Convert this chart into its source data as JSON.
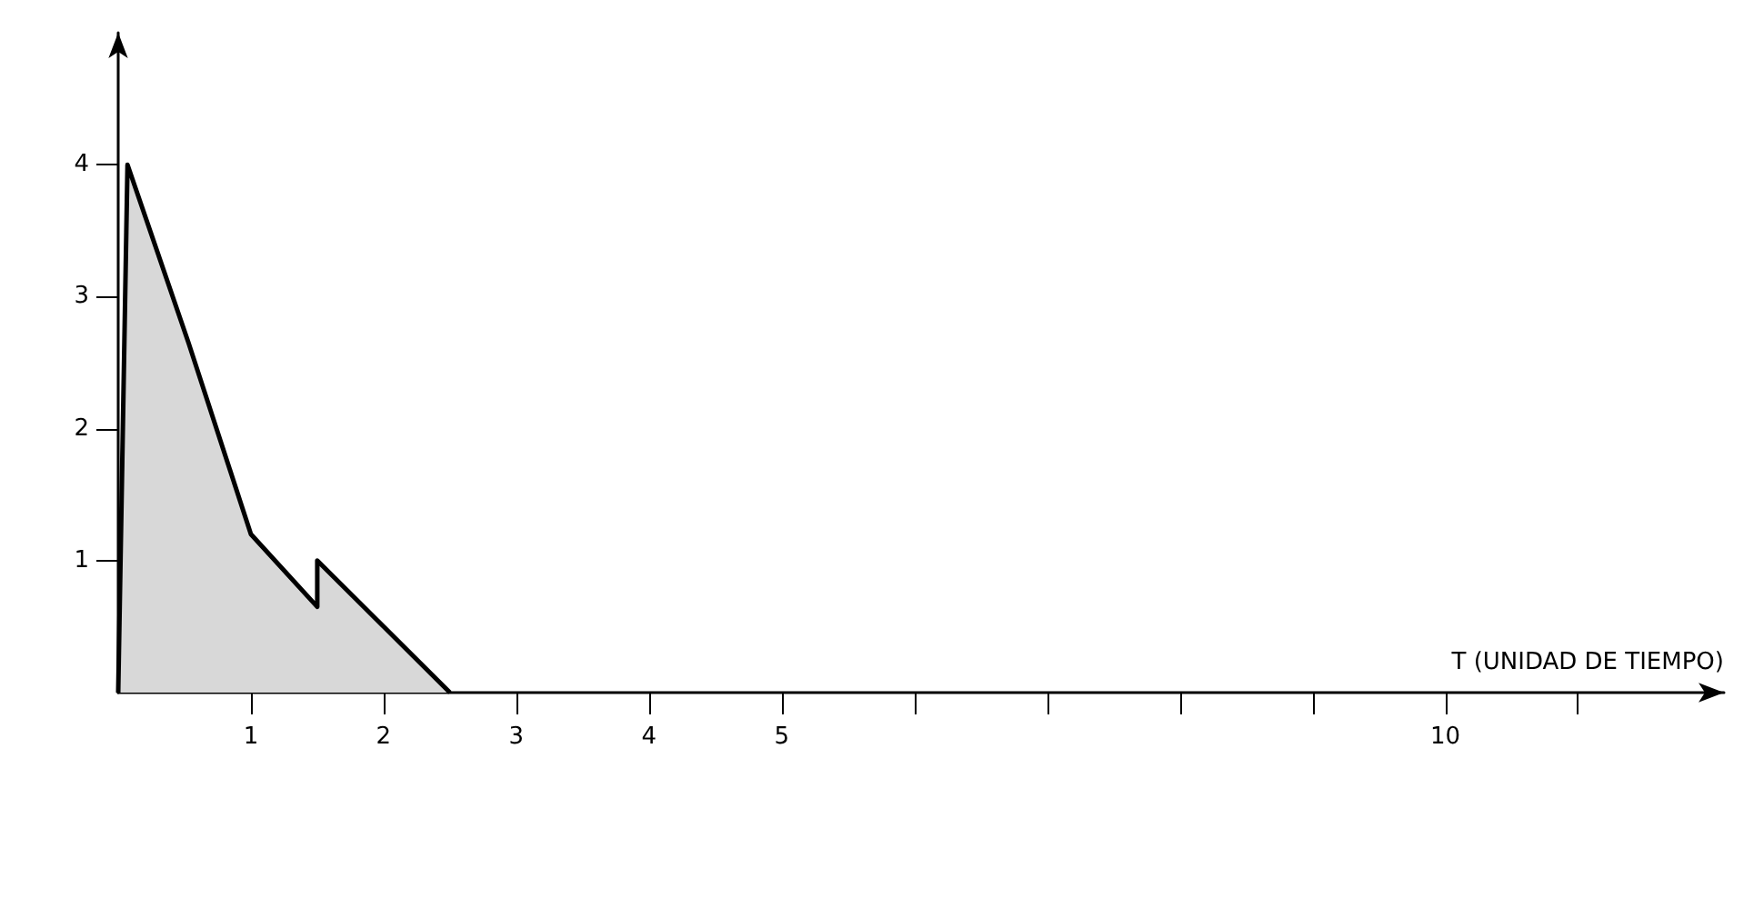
{
  "chart_data": {
    "type": "area",
    "xlabel": "T (UNIDAD DE TIEMPO)",
    "x": [
      0,
      0.07,
      0.53,
      1.0,
      1.5,
      1.5,
      2.5
    ],
    "series": [
      {
        "color": "#000000",
        "values": [
          0,
          4,
          2.65,
          1.2,
          0.65,
          1.0,
          0
        ]
      }
    ],
    "xlim": [
      0,
      12.1
    ],
    "ylim": [
      0,
      5
    ],
    "xticks": [
      1,
      2,
      3,
      4,
      5,
      {
        "value": 6,
        "label": null
      },
      {
        "value": 7,
        "label": null
      },
      {
        "value": 8,
        "label": null
      },
      {
        "value": 9,
        "label": null
      },
      10,
      {
        "value": 11,
        "label": null
      }
    ],
    "yticks": [
      1,
      2,
      3,
      4
    ],
    "marker": "none",
    "grid": false
  }
}
